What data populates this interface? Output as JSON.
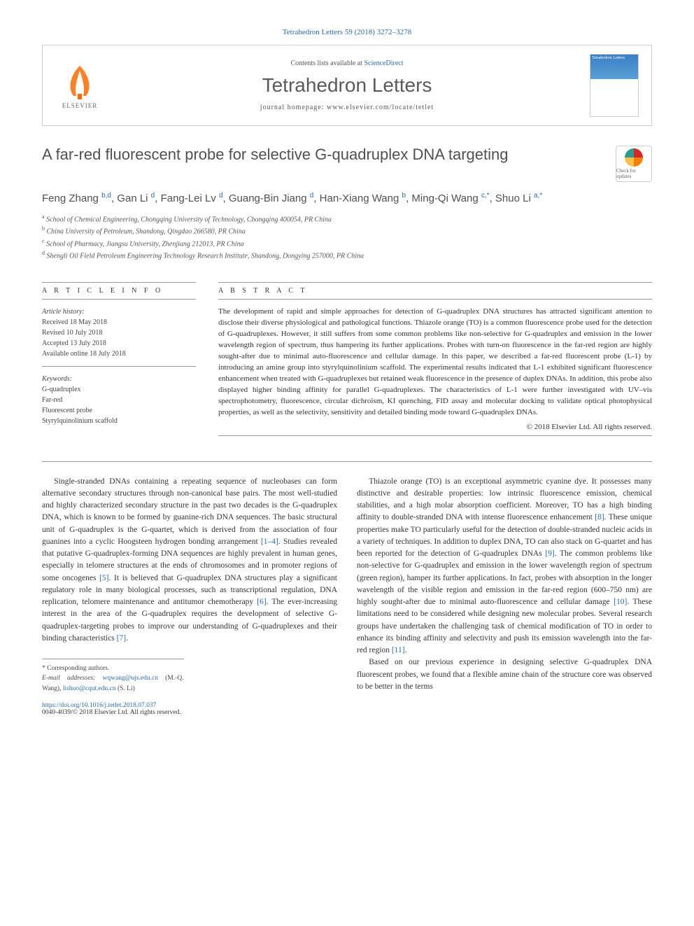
{
  "citation": "Tetrahedron Letters 59 (2018) 3272–3278",
  "masthead": {
    "contents_prefix": "Contents lists available at ",
    "contents_link": "ScienceDirect",
    "journal": "Tetrahedron Letters",
    "homepage_prefix": "journal homepage: ",
    "homepage_url": "www.elsevier.com/locate/tetlet",
    "elsevier_label": "ELSEVIER",
    "cover_label": "Tetrahedron Letters"
  },
  "colors": {
    "link": "#2a6ab5",
    "text": "#333333",
    "heading": "#505050",
    "rule": "#999999",
    "elsevier_orange": "#ff6b00"
  },
  "title": "A far-red fluorescent probe for selective G-quadruplex DNA targeting",
  "check_updates": "Check for updates",
  "authors_html": "Feng Zhang <sup>b,d</sup>, Gan Li <sup>d</sup>, Fang-Lei Lv <sup>d</sup>, Guang-Bin Jiang <sup>d</sup>, Han-Xiang Wang <sup>b</sup>, Ming-Qi Wang <sup>c,*</sup>, Shuo Li <sup>a,*</sup>",
  "affiliations": [
    {
      "sup": "a",
      "text": "School of Chemical Engineering, Chongqing University of Technology, Chongqing 400054, PR China"
    },
    {
      "sup": "b",
      "text": "China University of Petroleum, Shandong, Qingdao 266580, PR China"
    },
    {
      "sup": "c",
      "text": "School of Pharmacy, Jiangsu University, Zhenjiang 212013, PR China"
    },
    {
      "sup": "d",
      "text": "Shengli Oil Field Petroleum Engineering Technology Research Institute, Shandong, Dongying 257000, PR China"
    }
  ],
  "info": {
    "heading": "A R T I C L E   I N F O",
    "history_label": "Article history:",
    "history": [
      "Received 18 May 2018",
      "Revised 10 July 2018",
      "Accepted 13 July 2018",
      "Available online 18 July 2018"
    ],
    "keywords_label": "Keywords:",
    "keywords": [
      "G-quadruplex",
      "Far-red",
      "Fluorescent probe",
      "Styrylquinolinium scaffold"
    ]
  },
  "abstract": {
    "heading": "A B S T R A C T",
    "text": "The development of rapid and simple approaches for detection of G-quadruplex DNA structures has attracted significant attention to disclose their diverse physiological and pathological functions. Thiazole orange (TO) is a common fluorescence probe used for the detection of G-quadruplexes. However, it still suffers from some common problems like non-selective for G-quadruplex and emission in the lower wavelength region of spectrum, thus hampering its further applications. Probes with turn-on fluorescence in the far-red region are highly sought-after due to minimal auto-fluorescence and cellular damage. In this paper, we described a far-red fluorescent probe (L-1) by introducing an amine group into styrylquinolinium scaffold. The experimental results indicated that L-1 exhibited significant fluorescence enhancement when treated with G-quadruplexes but retained weak fluorescence in the presence of duplex DNAs. In addition, this probe also displayed higher binding affinity for parallel G-quadruplexes. The characteristics of L-1 were further investigated with UV–vis spectrophotometry, fluorescence, circular dichroism, KI quenching, FID assay and molecular docking to validate optical photophysical properties, as well as the selectivity, sensitivity and detailed binding mode toward G-quadruplex DNAs.",
    "copyright": "© 2018 Elsevier Ltd. All rights reserved."
  },
  "body": {
    "p1": "Single-stranded DNAs containing a repeating sequence of nucleobases can form alternative secondary structures through non-canonical base pairs. The most well-studied and highly characterized secondary structure in the past two decades is the G-quadruplex DNA, which is known to be formed by guanine-rich DNA sequences. The basic structural unit of G-quadruplex is the G-quartet, which is derived from the association of four guanines into a cyclic Hoogsteen hydrogen bonding arrangement [1–4]. Studies revealed that putative G-quadruplex-forming DNA sequences are highly prevalent in human genes, especially in telomere structures at the ends of chromosomes and in promoter regions of some oncogenes [5]. It is believed that G-quadruplex DNA structures play a significant regulatory role in many biological processes, such as transcriptional regulation, DNA replication, telomere maintenance and antitumor chemotherapy [6]. The ever-increasing interest in the area of the G-quadruplex requires the development of selective G-quadruplex-targeting probes to improve our understanding of G-quadruplexes and their binding characteristics [7].",
    "p2": "Thiazole orange (TO) is an exceptional asymmetric cyanine dye. It possesses many distinctive and desirable properties: low intrinsic fluorescence emission, chemical stabilities, and a high molar absorption coefficient. Moreover, TO has a high binding affinity to double-stranded DNA with intense fluorescence enhancement [8]. These unique properties make TO particularly useful for the detection of double-stranded nucleic acids in a variety of techniques. In addition to duplex DNA, TO can also stack on G-quartet and has been reported for the detection of G-quadruplex DNAs [9]. The common problems like non-selective for G-quadruplex and emission in the lower wavelength region of spectrum (green region), hamper its further applications. In fact, probes with absorption in the longer wavelength of the visible region and emission in the far-red region (600–750 nm) are highly sought-after due to minimal auto-fluorescence and cellular damage [10]. These limitations need to be considered while designing new molecular probes. Several research groups have undertaken the challenging task of chemical modification of TO in order to enhance its binding affinity and selectivity and push its emission wavelength into the far-red region [11].",
    "p3": "Based on our previous experience in designing selective G-quadruplex DNA fluorescent probes, we found that a flexible amine chain of the structure core was observed to be better in the terms"
  },
  "footnotes": {
    "corr": "* Corresponding authors.",
    "email_label": "E-mail addresses: ",
    "email1": "wqwang@ujs.edu.cn",
    "email1_who": " (M.-Q. Wang), ",
    "email2": "lishuo@cqut.edu.cn",
    "email2_who": " (S. Li)"
  },
  "footer": {
    "doi": "https://doi.org/10.1016/j.tetlet.2018.07.037",
    "issn_copyright": "0040-4039/© 2018 Elsevier Ltd. All rights reserved."
  }
}
